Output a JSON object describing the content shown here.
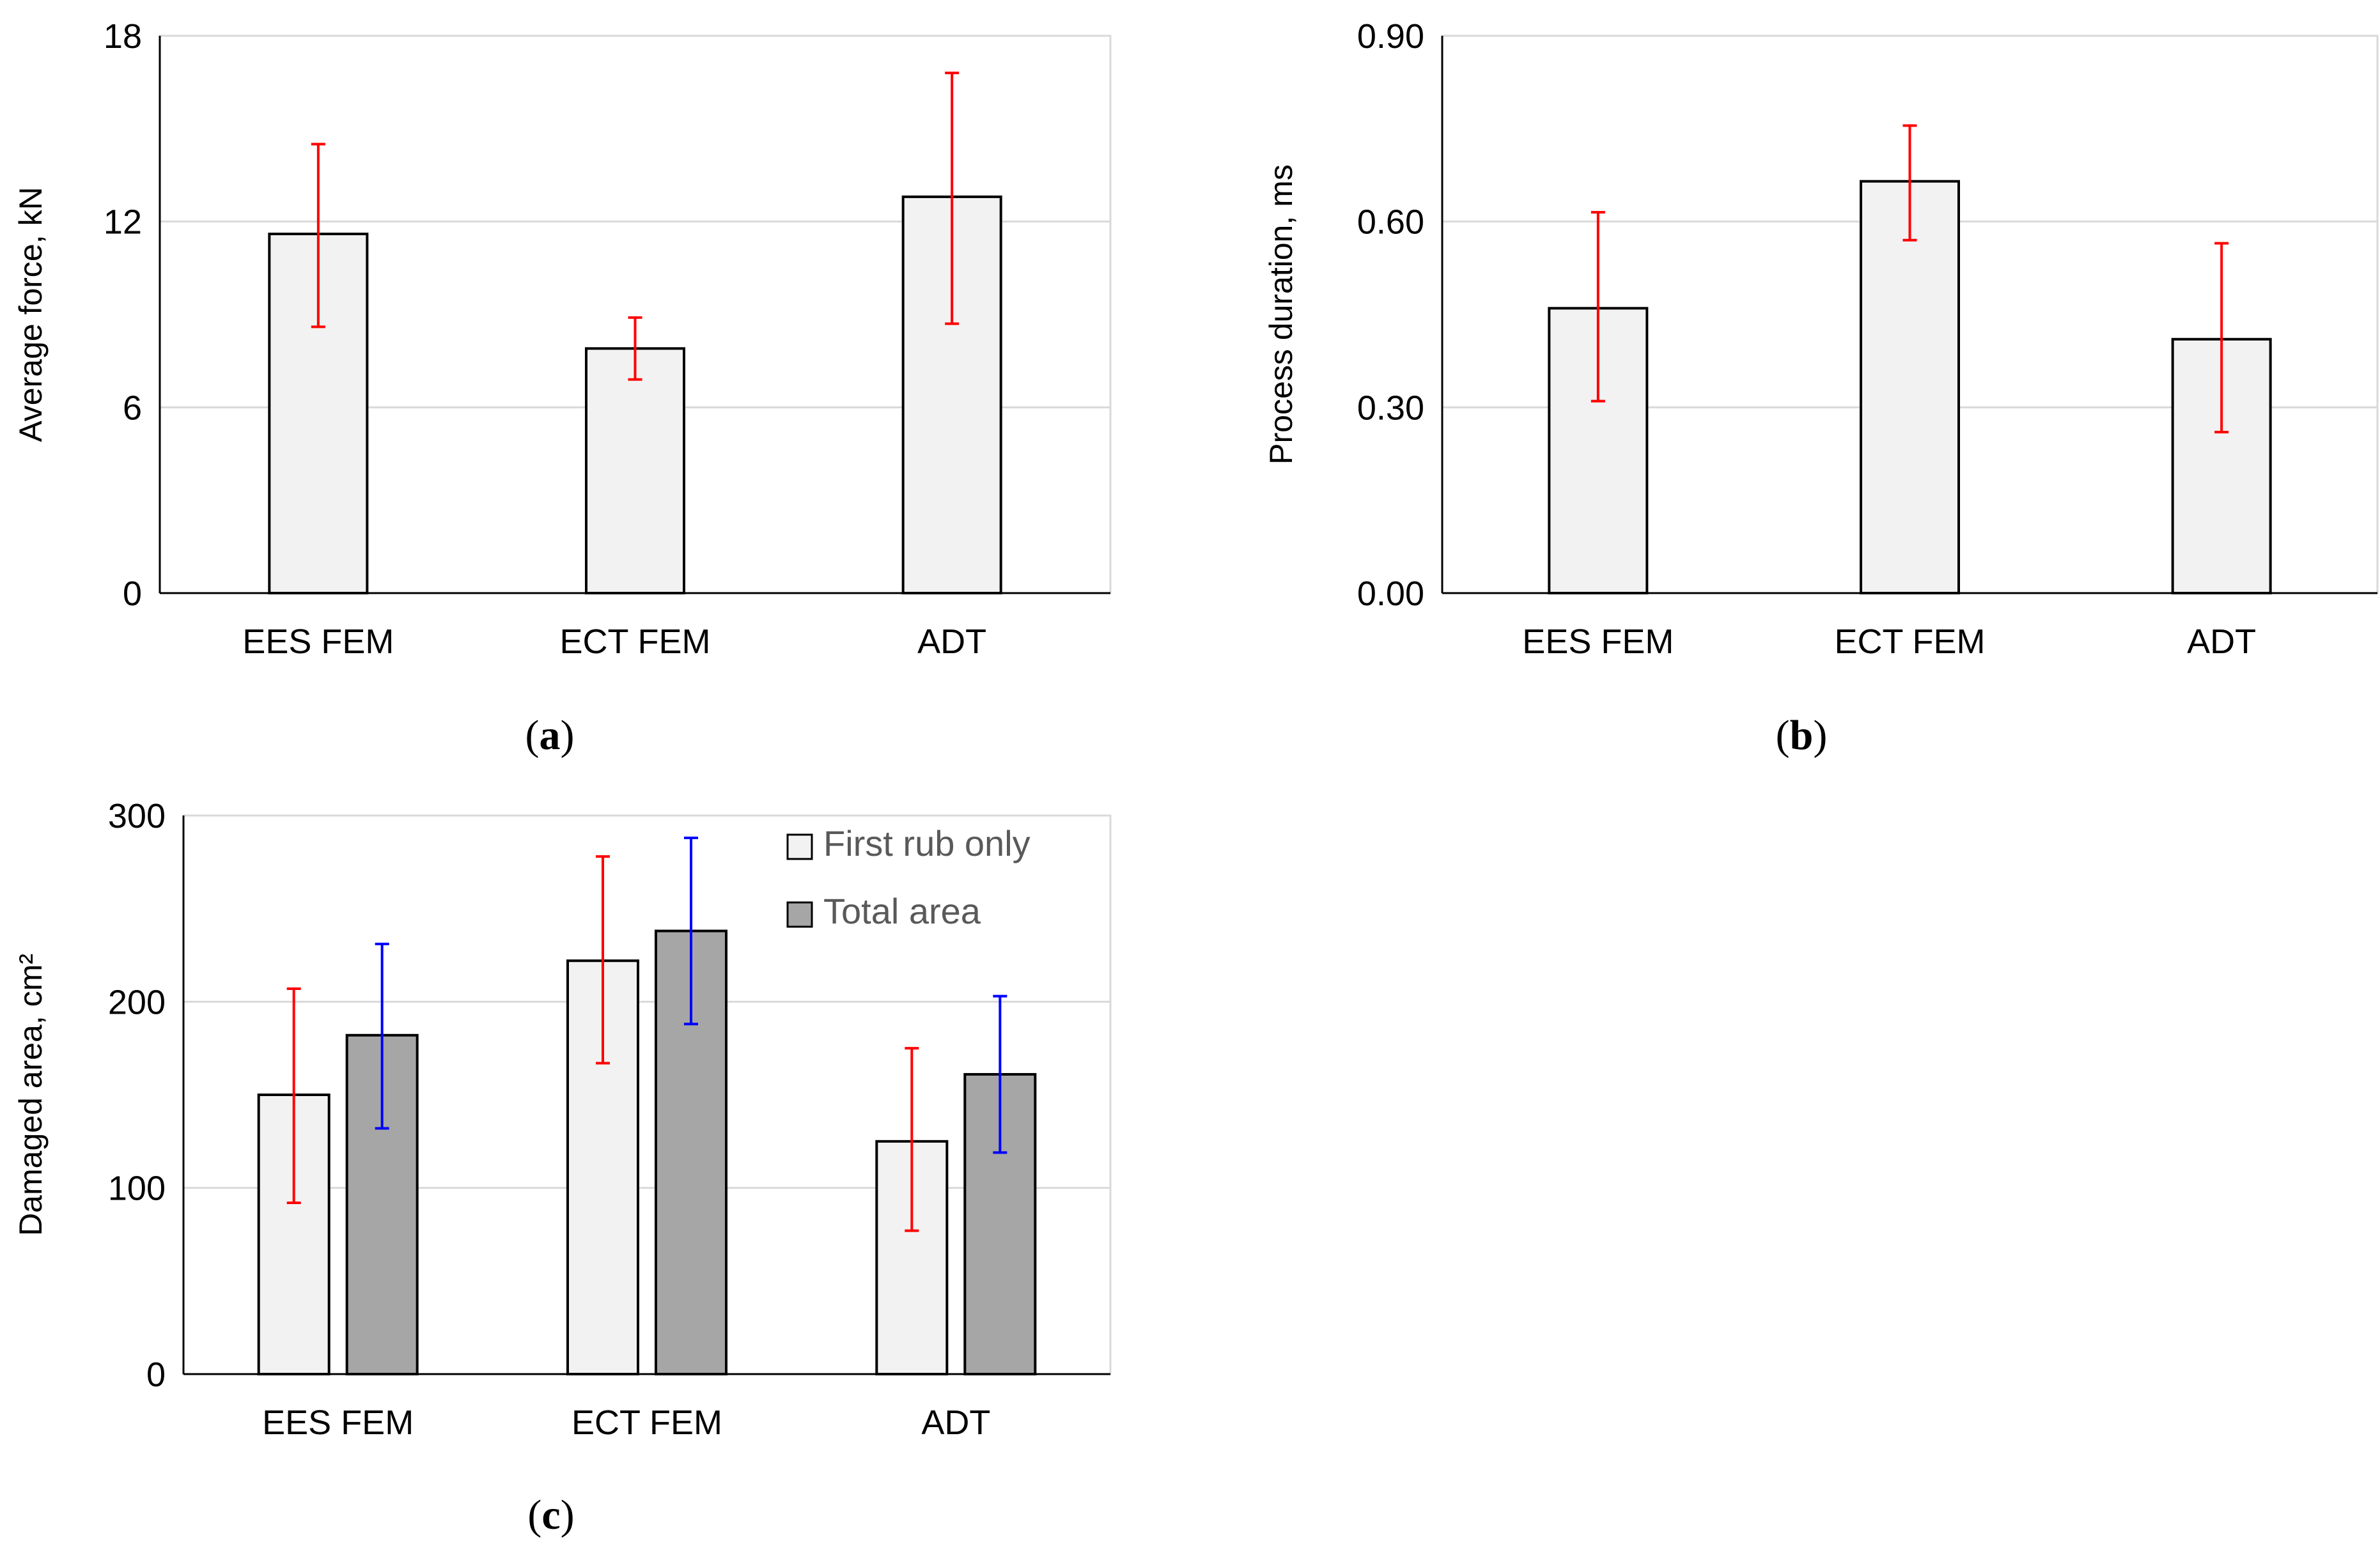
{
  "chart_data": [
    {
      "type": "bar",
      "panel_label": "a",
      "categories": [
        "EES FEM",
        "ECT FEM",
        "ADT"
      ],
      "series": [
        {
          "values": [
            11.6,
            7.9,
            12.8
          ],
          "error_low": [
            8.6,
            6.9,
            8.7
          ],
          "error_high": [
            14.5,
            8.9,
            16.8
          ],
          "fill": "#f2f2f2",
          "error_color": "#ff0000"
        }
      ],
      "ylabel": "Average force, kN",
      "ylim": [
        0,
        18
      ],
      "yticks": [
        "0",
        "6",
        "12",
        "18"
      ],
      "grid": true,
      "legend": null
    },
    {
      "type": "bar",
      "panel_label": "b",
      "categories": [
        "EES FEM",
        "ECT FEM",
        "ADT"
      ],
      "series": [
        {
          "values": [
            0.46,
            0.665,
            0.41
          ],
          "error_low": [
            0.31,
            0.57,
            0.26
          ],
          "error_high": [
            0.615,
            0.755,
            0.565
          ],
          "fill": "#f2f2f2",
          "error_color": "#ff0000"
        }
      ],
      "ylabel": "Process duration, ms",
      "ylim": [
        0,
        0.9
      ],
      "yticks": [
        "0.00",
        "0.30",
        "0.60",
        "0.90"
      ],
      "grid": true,
      "legend": null
    },
    {
      "type": "bar",
      "panel_label": "c",
      "categories": [
        "EES FEM",
        "ECT FEM",
        "ADT"
      ],
      "series": [
        {
          "name": "First rub only",
          "values": [
            150,
            222,
            125
          ],
          "error_low": [
            92,
            167,
            77
          ],
          "error_high": [
            207,
            278,
            175
          ],
          "fill": "#f2f2f2",
          "error_color": "#ff0000"
        },
        {
          "name": "Total area",
          "values": [
            182,
            238,
            161
          ],
          "error_low": [
            132,
            188,
            119
          ],
          "error_high": [
            231,
            288,
            203
          ],
          "fill": "#a6a6a6",
          "error_color": "#0000ff"
        }
      ],
      "ylabel": "Damaged area, cm²",
      "ylim": [
        0,
        300
      ],
      "yticks": [
        "0",
        "100",
        "200",
        "300"
      ],
      "grid": true,
      "legend": "top-right"
    }
  ]
}
